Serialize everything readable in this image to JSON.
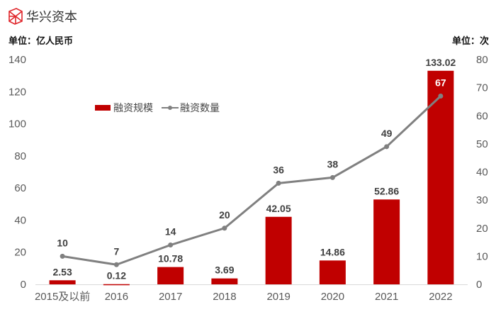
{
  "header": {
    "brand": "华兴资本",
    "brand_color": "#e0262b",
    "unit_left": "单位：亿人民币",
    "unit_right": "单位：次"
  },
  "legend": {
    "bar_label": "融资规模",
    "line_label": "融资数量"
  },
  "colors": {
    "bar": "#c00000",
    "line": "#808080",
    "axis": "#d9d9d9",
    "tick_text": "#595959",
    "label_text": "#404040"
  },
  "chart_data": {
    "type": "bar",
    "title": "",
    "categories": [
      "2015及以前",
      "2016",
      "2017",
      "2018",
      "2019",
      "2020",
      "2021",
      "2022"
    ],
    "series": [
      {
        "name": "融资规模",
        "type": "bar",
        "axis": "left",
        "unit": "亿人民币",
        "values": [
          2.53,
          0.12,
          10.78,
          3.69,
          42.05,
          14.86,
          52.86,
          133.02
        ]
      },
      {
        "name": "融资数量",
        "type": "line",
        "axis": "right",
        "unit": "次",
        "values": [
          10,
          7,
          14,
          20,
          36,
          38,
          49,
          67
        ]
      }
    ],
    "xlabel": "",
    "ylabel": "单位：亿人民币",
    "ylabel_right": "单位：次",
    "ylim": [
      0,
      140
    ],
    "ylim_right": [
      0,
      80
    ],
    "yticks": [
      0,
      20,
      40,
      60,
      80,
      100,
      120,
      140
    ],
    "yticks_right": [
      0,
      10,
      20,
      30,
      40,
      50,
      60,
      70,
      80
    ],
    "grid": false,
    "legend_position": "upper-left-inside"
  }
}
